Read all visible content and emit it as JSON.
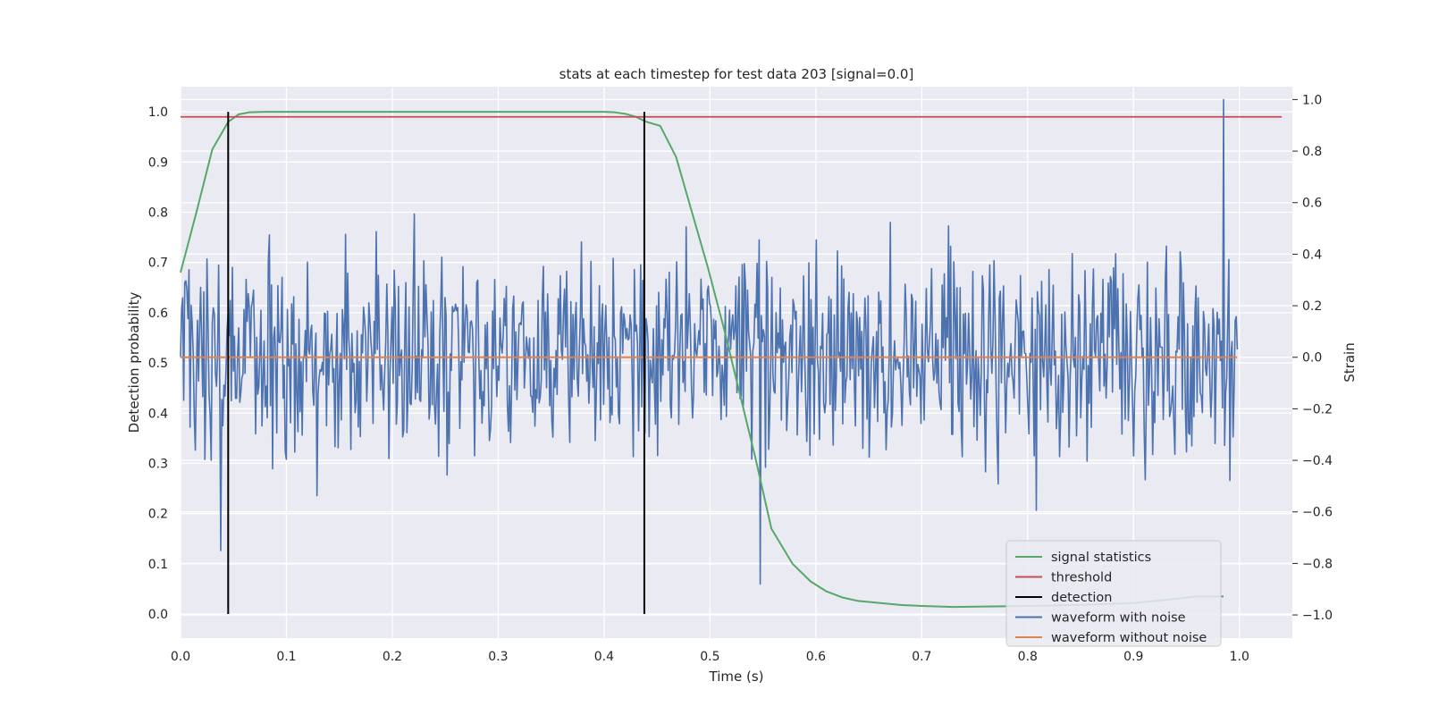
{
  "chart_data": {
    "type": "line",
    "title": "stats at each timestep for test data 203 [signal=0.0]",
    "xlabel": "Time (s)",
    "ylabel": "Detection probability",
    "ylabel_right": "Strain",
    "xlim": [
      0.0,
      1.05
    ],
    "ylim": [
      -0.048,
      1.05
    ],
    "ylim_right": [
      -1.09,
      1.05
    ],
    "x_ticks": [
      "0.0",
      "0.1",
      "0.2",
      "0.3",
      "0.4",
      "0.5",
      "0.6",
      "0.7",
      "0.8",
      "0.9",
      "1.0"
    ],
    "y_ticks": [
      "0.0",
      "0.1",
      "0.2",
      "0.3",
      "0.4",
      "0.5",
      "0.6",
      "0.7",
      "0.8",
      "0.9",
      "1.0"
    ],
    "y_ticks_right": [
      "−1.0",
      "−0.8",
      "−0.6",
      "−0.4",
      "−0.2",
      "0.0",
      "0.2",
      "0.4",
      "0.6",
      "0.8",
      "1.0"
    ],
    "grid": true,
    "legend_position": "lower-right",
    "colors": {
      "signal_statistics": "#55a868",
      "threshold": "#c44e52",
      "detection": "#000000",
      "waveform_with_noise": "#4c72b0",
      "waveform_without_noise": "#dd8452",
      "background": "#eaeaf2"
    },
    "series": [
      {
        "name": "signal statistics",
        "axis": "left",
        "x": [
          0.0,
          0.015,
          0.03,
          0.045,
          0.055,
          0.065,
          0.08,
          0.1,
          0.2,
          0.3,
          0.4,
          0.41,
          0.42,
          0.43,
          0.44,
          0.453,
          0.468,
          0.483,
          0.498,
          0.513,
          0.528,
          0.543,
          0.558,
          0.578,
          0.595,
          0.61,
          0.625,
          0.64,
          0.66,
          0.68,
          0.7,
          0.73,
          0.76,
          0.8,
          0.85,
          0.9,
          0.93,
          0.96,
          0.985
        ],
        "y": [
          0.68,
          0.8,
          0.925,
          0.98,
          0.995,
          0.999,
          1.0,
          1.0,
          1.0,
          1.0,
          1.0,
          0.999,
          0.996,
          0.99,
          0.98,
          0.972,
          0.91,
          0.8,
          0.69,
          0.57,
          0.44,
          0.31,
          0.17,
          0.1,
          0.065,
          0.045,
          0.033,
          0.026,
          0.022,
          0.018,
          0.016,
          0.014,
          0.015,
          0.016,
          0.018,
          0.022,
          0.028,
          0.035,
          0.035
        ]
      },
      {
        "name": "threshold",
        "axis": "left",
        "x": [
          0.0,
          1.04
        ],
        "y": [
          0.99,
          0.99
        ]
      },
      {
        "name": "detection",
        "axis": "left",
        "x": [
          0.045,
          0.438
        ],
        "y": [
          1.0,
          1.0
        ]
      },
      {
        "name": "waveform with noise",
        "axis": "right",
        "x_range": [
          0.0,
          0.998
        ],
        "n_points": 1000,
        "amplitude": 0.4,
        "peak_max": 1.0,
        "peak_min": -0.95
      },
      {
        "name": "waveform without noise",
        "axis": "right",
        "x": [
          0.0,
          0.998
        ],
        "y": [
          0.0,
          0.0
        ]
      }
    ]
  }
}
